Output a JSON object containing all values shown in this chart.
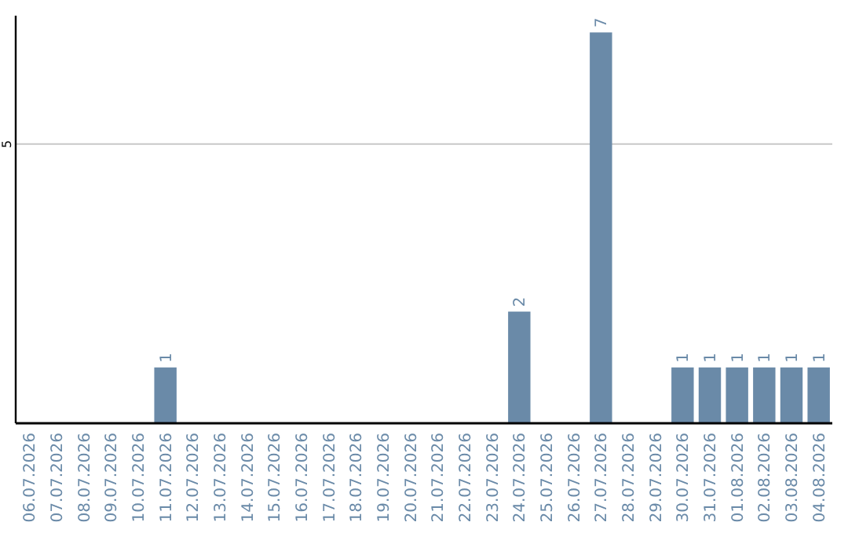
{
  "chart_data": {
    "type": "bar",
    "categories": [
      "06.07.2026",
      "07.07.2026",
      "08.07.2026",
      "09.07.2026",
      "10.07.2026",
      "11.07.2026",
      "12.07.2026",
      "13.07.2026",
      "14.07.2026",
      "15.07.2026",
      "16.07.2026",
      "17.07.2026",
      "18.07.2026",
      "19.07.2026",
      "20.07.2026",
      "21.07.2026",
      "22.07.2026",
      "23.07.2026",
      "24.07.2026",
      "25.07.2026",
      "26.07.2026",
      "27.07.2026",
      "28.07.2026",
      "29.07.2026",
      "30.07.2026",
      "31.07.2026",
      "01.08.2026",
      "02.08.2026",
      "03.08.2026",
      "04.08.2026"
    ],
    "values": [
      0,
      0,
      0,
      0,
      0,
      1,
      0,
      0,
      0,
      0,
      0,
      0,
      0,
      0,
      0,
      0,
      0,
      0,
      2,
      0,
      0,
      7,
      0,
      0,
      1,
      1,
      1,
      1,
      1,
      1
    ],
    "value_labels": [
      null,
      null,
      null,
      null,
      null,
      "1",
      null,
      null,
      null,
      null,
      null,
      null,
      null,
      null,
      null,
      null,
      null,
      null,
      "2",
      null,
      null,
      "7",
      null,
      null,
      "1",
      "1",
      "1",
      "1",
      "1",
      "1"
    ],
    "color": "#6a8aa8",
    "ylim": [
      0,
      7.3
    ],
    "yticks": [
      5
    ],
    "grid": "y"
  }
}
